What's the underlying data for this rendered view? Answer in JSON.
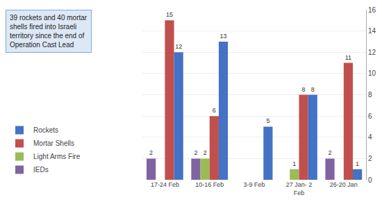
{
  "chart_data": {
    "type": "bar",
    "categories": [
      "17-24 Feb",
      "10-16 Feb",
      "3-9 Feb",
      "27 Jan- 2\nFeb",
      "26-20 Jan"
    ],
    "series": [
      {
        "name": "IEDs",
        "color": "#8064A2",
        "values": [
          2,
          2,
          0,
          0,
          2
        ],
        "value_labels": [
          "2",
          "2",
          null,
          null,
          "2"
        ]
      },
      {
        "name": "Light Arms Fire",
        "color": "#9BBB59",
        "values": [
          0,
          2,
          0,
          1,
          0
        ],
        "value_labels": [
          null,
          "2",
          null,
          "1",
          null
        ]
      },
      {
        "name": "Mortar Shells",
        "color": "#C0504D",
        "values": [
          15,
          6,
          0,
          8,
          11
        ],
        "value_labels": [
          "15",
          "6",
          null,
          "8",
          "11"
        ]
      },
      {
        "name": "Rockets",
        "color": "#4472C4",
        "values": [
          12,
          13,
          5,
          8,
          1
        ],
        "value_labels": [
          "12",
          "13",
          "5",
          "8",
          "1"
        ]
      }
    ],
    "ylim": [
      0,
      16
    ],
    "yticks": [
      0,
      2,
      4,
      6,
      8,
      10,
      12,
      14,
      16
    ],
    "grid": true,
    "legend": "lower left",
    "data_labels": true,
    "annotation": "39 rockets and 40 mortar\nshells fired into Israeli\nterritory since the end of\nOperation Cast Lead"
  }
}
